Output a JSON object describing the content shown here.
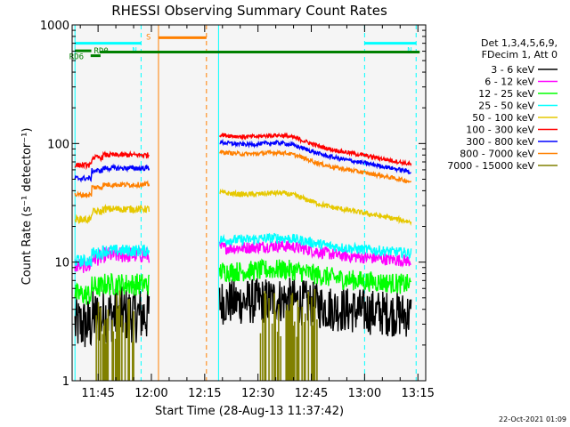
{
  "chart_data": {
    "type": "line",
    "title": "RHESSI Observing Summary Count Rates",
    "xlabel": "Start Time (28-Aug-13 11:37:42)",
    "ylabel": "Count Rate (s⁻¹ detector⁻¹)",
    "y_scale": "log",
    "ylim": [
      1,
      1000
    ],
    "y_ticks": [
      1,
      10,
      100,
      1000
    ],
    "y_tick_labels": [
      "1",
      "10",
      "100",
      "1000"
    ],
    "xlim_minutes": [
      0,
      99.5
    ],
    "x_ticks_minutes": [
      7.3,
      22.3,
      37.3,
      52.3,
      67.3,
      82.3,
      97.3
    ],
    "x_tick_labels": [
      "11:45",
      "12:00",
      "12:15",
      "12:30",
      "12:45",
      "13:00",
      "13:15"
    ],
    "footer_date": "22-Oct-2021 01:09",
    "legend_header": [
      "Det 1,3,4,5,6,9,",
      "FDecim 1, Att 0"
    ],
    "series": [
      {
        "name": "3 - 6 keV",
        "color": "#000000",
        "segments": [
          {
            "start": 0.8,
            "end": 21.8,
            "level": 3.6,
            "noise": 0.55,
            "profile": "seg1"
          },
          {
            "start": 41.5,
            "end": 95.5,
            "level": 4.2,
            "noise": 0.45,
            "profile": "seg2low"
          }
        ]
      },
      {
        "name": "6 - 12 keV",
        "color": "#ff00ff",
        "segments": [
          {
            "start": 0.8,
            "end": 21.8,
            "level": 11.5,
            "noise": 0.16,
            "profile": "seg1"
          },
          {
            "start": 41.5,
            "end": 95.5,
            "level": 12,
            "noise": 0.12,
            "profile": "seg2low"
          }
        ]
      },
      {
        "name": "12 - 25 keV",
        "color": "#00ff00",
        "segments": [
          {
            "start": 0.8,
            "end": 21.8,
            "level": 6.5,
            "noise": 0.22,
            "profile": "seg1"
          },
          {
            "start": 41.5,
            "end": 95.5,
            "level": 7.6,
            "noise": 0.2,
            "profile": "seg2low"
          }
        ]
      },
      {
        "name": "25 - 50 keV",
        "color": "#00ffff",
        "segments": [
          {
            "start": 0.8,
            "end": 21.8,
            "level": 12.5,
            "noise": 0.12,
            "profile": "seg1"
          },
          {
            "start": 41.5,
            "end": 95.5,
            "level": 14,
            "noise": 0.1,
            "profile": "seg2low"
          }
        ]
      },
      {
        "name": "50 - 100 keV",
        "color": "#e6c800",
        "segments": [
          {
            "start": 0.8,
            "end": 21.8,
            "level": 28,
            "noise": 0.07,
            "profile": "seg1"
          },
          {
            "start": 41.5,
            "end": 95.5,
            "level": 31,
            "noise": 0.05,
            "profile": "seg2"
          }
        ]
      },
      {
        "name": "100 - 300 keV",
        "color": "#ff0000",
        "segments": [
          {
            "start": 0.8,
            "end": 21.8,
            "level": 80,
            "noise": 0.05,
            "profile": "seg1"
          },
          {
            "start": 41.5,
            "end": 95.5,
            "level": 95,
            "noise": 0.04,
            "profile": "seg2"
          }
        ]
      },
      {
        "name": "300 - 800 keV",
        "color": "#0000ff",
        "segments": [
          {
            "start": 0.8,
            "end": 21.8,
            "level": 62,
            "noise": 0.05,
            "profile": "seg1"
          },
          {
            "start": 41.5,
            "end": 95.5,
            "level": 82,
            "noise": 0.04,
            "profile": "seg2"
          }
        ]
      },
      {
        "name": "800 - 7000 keV",
        "color": "#ff8000",
        "segments": [
          {
            "start": 0.8,
            "end": 21.8,
            "level": 45,
            "noise": 0.05,
            "profile": "seg1"
          },
          {
            "start": 41.5,
            "end": 95.5,
            "level": 68,
            "noise": 0.04,
            "profile": "seg2"
          }
        ]
      },
      {
        "name": "7000 - 15000 keV",
        "color": "#808000",
        "segments": [
          {
            "start": 6.5,
            "end": 17.5,
            "level": 1,
            "noise": 0,
            "profile": "bars"
          },
          {
            "start": 53,
            "end": 69,
            "level": 1,
            "noise": 0,
            "profile": "bars"
          }
        ]
      }
    ],
    "flags": [
      {
        "name": "night/eclipse (solid cyan)",
        "color": "#00ffff",
        "lines_minutes": [
          0.8,
          41.2
        ]
      },
      {
        "name": "night/eclipse (dashed cyan)",
        "color": "#00ffff",
        "lines_minutes": [
          19.4,
          82.3,
          96.8
        ]
      },
      {
        "name": "SAA (solid orange)",
        "color": "#ff8000",
        "lines_minutes": [
          24.3
        ]
      },
      {
        "name": "SAA (dashed orange)",
        "color": "#ff8000",
        "lines_minutes": [
          37.8
        ]
      }
    ],
    "top_bars": [
      {
        "label": "N",
        "color": "#00ffff",
        "start": 0.8,
        "end": 19.4,
        "level": 700
      },
      {
        "label": "N",
        "color": "#00ffff",
        "start": 82.3,
        "end": 96.8,
        "level": 700
      },
      {
        "label": "S",
        "color": "#ff8000",
        "start": 24.3,
        "end": 37.8,
        "level": 780
      },
      {
        "label": "RD0",
        "color": "#008000",
        "start": 0.8,
        "end": 5.4,
        "level": 605
      },
      {
        "label": "RD6",
        "color": "#008000",
        "start": 5.2,
        "end": 8.0,
        "level": 550
      },
      {
        "label": "",
        "color": "#008000",
        "start": 7.9,
        "end": 97.8,
        "level": 590
      }
    ]
  }
}
